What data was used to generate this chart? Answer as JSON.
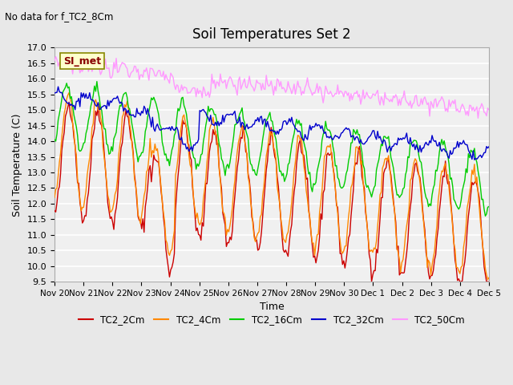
{
  "title": "Soil Temperatures Set 2",
  "subtitle": "No data for f_TC2_8Cm",
  "xlabel": "Time",
  "ylabel": "Soil Temperature (C)",
  "ylim": [
    9.5,
    17.0
  ],
  "yticks": [
    9.5,
    10.0,
    10.5,
    11.0,
    11.5,
    12.0,
    12.5,
    13.0,
    13.5,
    14.0,
    14.5,
    15.0,
    15.5,
    16.0,
    16.5,
    17.0
  ],
  "colors": {
    "TC2_2Cm": "#cc0000",
    "TC2_4Cm": "#ff8800",
    "TC2_16Cm": "#00cc00",
    "TC2_32Cm": "#0000cc",
    "TC2_50Cm": "#ff99ff"
  },
  "legend_label": "SI_met",
  "bg_color": "#e8e8e8",
  "plot_bg_color": "#f0f0f0",
  "grid_color": "#ffffff",
  "n_points": 360,
  "x_start": 0,
  "x_end": 15,
  "xtick_positions": [
    0,
    1,
    2,
    3,
    4,
    5,
    6,
    7,
    8,
    9,
    10,
    11,
    12,
    13,
    14,
    15
  ],
  "xtick_labels": [
    "Nov 20",
    "Nov 21",
    "Nov 22",
    "Nov 23",
    "Nov 24",
    "Nov 25",
    "Nov 26",
    "Nov 27",
    "Nov 28",
    "Nov 29",
    "Nov 30",
    "Dec 1",
    "Dec 2",
    "Dec 3",
    "Dec 4",
    "Dec 5"
  ]
}
